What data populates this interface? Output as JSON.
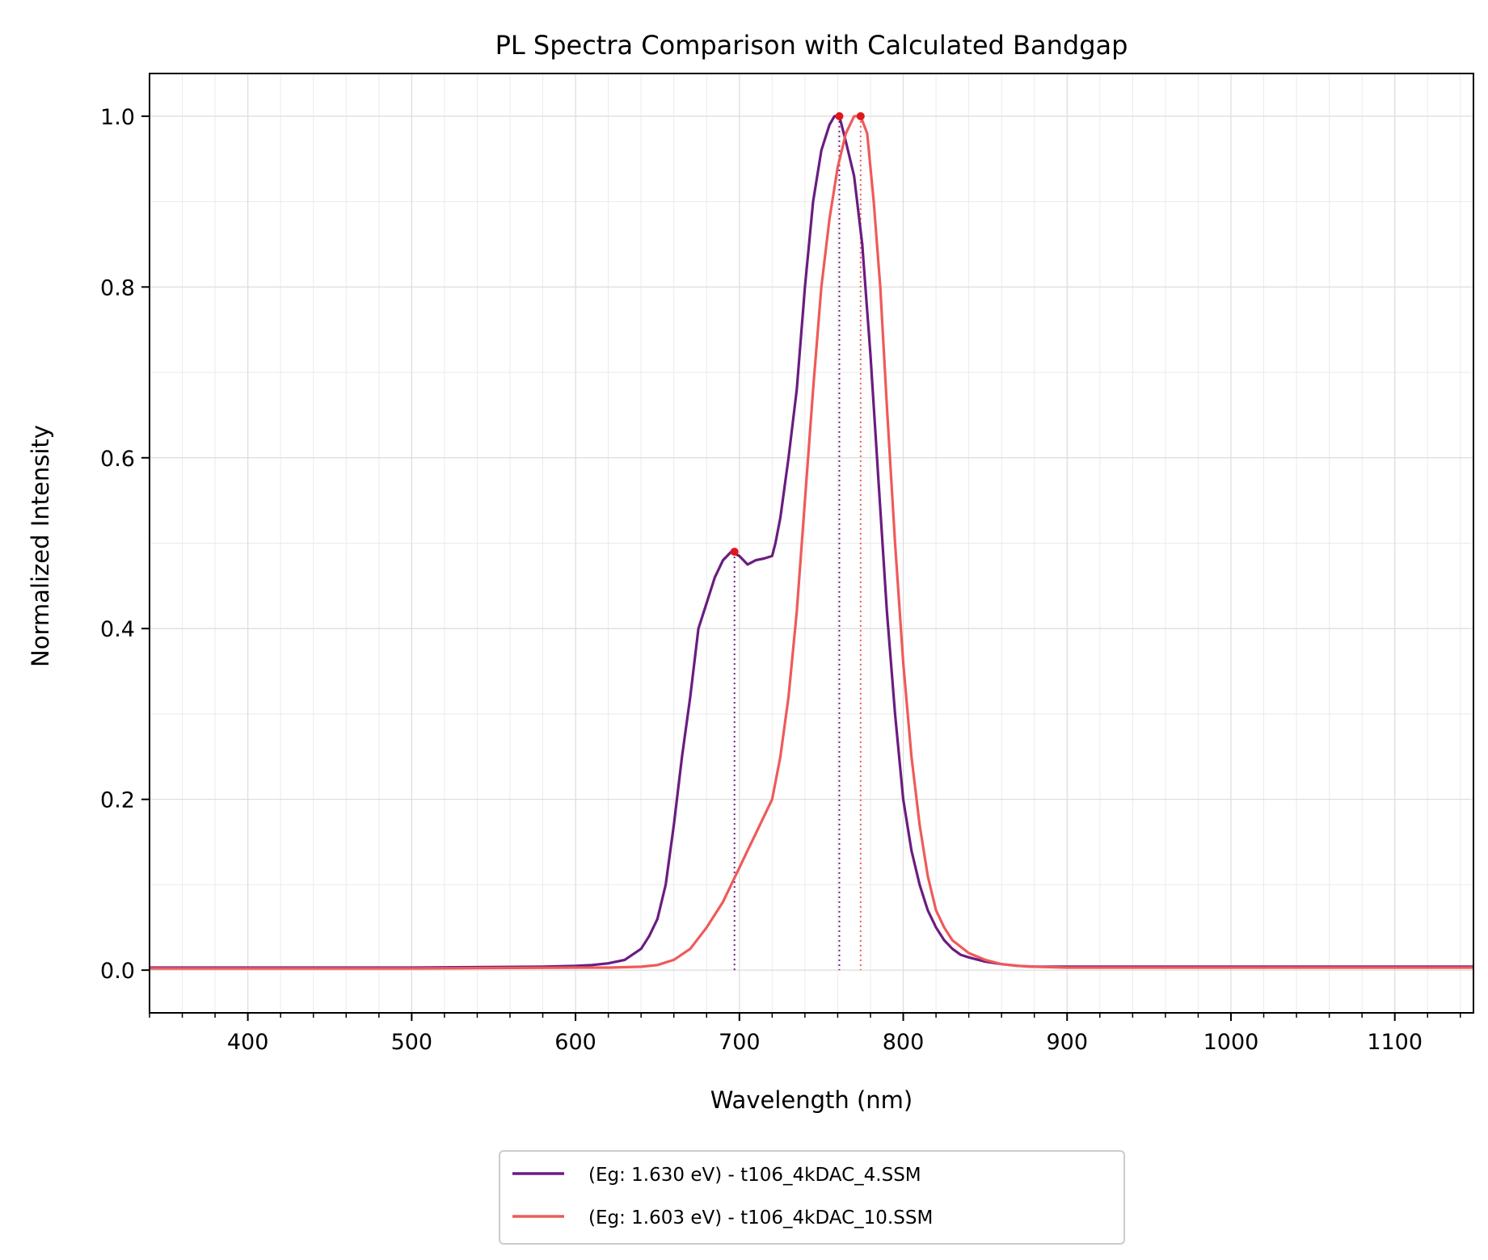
{
  "chart_data": {
    "type": "line",
    "title": "PL Spectra Comparison with Calculated Bandgap",
    "xlabel": "Wavelength (nm)",
    "ylabel": "Normalized Intensity",
    "xlim": [
      340,
      1148
    ],
    "ylim": [
      -0.05,
      1.05
    ],
    "x_ticks": [
      400,
      500,
      600,
      700,
      800,
      900,
      1000,
      1100
    ],
    "x_tick_labels": [
      "400",
      "500",
      "600",
      "700",
      "800",
      "900",
      "1000",
      "1100"
    ],
    "x_minor_step": 20,
    "y_ticks": [
      0.0,
      0.2,
      0.4,
      0.6,
      0.8,
      1.0
    ],
    "y_tick_labels": [
      "0.0",
      "0.2",
      "0.4",
      "0.6",
      "0.8",
      "1.0"
    ],
    "y_minor_step": 0.1,
    "grid": true,
    "legend_position": "bottom-center below plot",
    "series": [
      {
        "name": "(Eg: 1.630 eV) - t106_4kDAC_4.SSM",
        "color": "#6a1c81",
        "x": [
          340,
          400,
          500,
          580,
          600,
          610,
          620,
          630,
          640,
          645,
          650,
          655,
          660,
          665,
          670,
          675,
          680,
          685,
          690,
          695,
          700,
          705,
          710,
          715,
          720,
          722,
          725,
          730,
          735,
          740,
          745,
          750,
          755,
          758,
          761,
          765,
          770,
          775,
          780,
          785,
          790,
          795,
          800,
          805,
          810,
          815,
          820,
          825,
          830,
          835,
          840,
          850,
          860,
          870,
          880,
          900,
          1000,
          1148
        ],
        "y": [
          0.003,
          0.003,
          0.003,
          0.004,
          0.005,
          0.006,
          0.008,
          0.012,
          0.025,
          0.04,
          0.06,
          0.1,
          0.17,
          0.25,
          0.32,
          0.4,
          0.43,
          0.46,
          0.48,
          0.49,
          0.485,
          0.475,
          0.48,
          0.482,
          0.485,
          0.5,
          0.53,
          0.6,
          0.68,
          0.8,
          0.9,
          0.96,
          0.99,
          1.0,
          1.0,
          0.97,
          0.93,
          0.85,
          0.72,
          0.57,
          0.42,
          0.3,
          0.2,
          0.14,
          0.1,
          0.07,
          0.05,
          0.035,
          0.025,
          0.018,
          0.015,
          0.01,
          0.007,
          0.005,
          0.004,
          0.004,
          0.004,
          0.004
        ]
      },
      {
        "name": "(Eg: 1.603 eV) - t106_4kDAC_10.SSM",
        "color": "#ef5a5a",
        "x": [
          340,
          400,
          500,
          600,
          620,
          640,
          650,
          660,
          670,
          680,
          690,
          700,
          705,
          710,
          715,
          720,
          725,
          730,
          735,
          740,
          745,
          750,
          755,
          760,
          765,
          770,
          774,
          778,
          782,
          786,
          790,
          795,
          800,
          805,
          810,
          815,
          820,
          825,
          830,
          840,
          850,
          860,
          870,
          880,
          900,
          1000,
          1148
        ],
        "y": [
          0.002,
          0.002,
          0.002,
          0.003,
          0.003,
          0.004,
          0.006,
          0.012,
          0.025,
          0.05,
          0.08,
          0.12,
          0.14,
          0.16,
          0.18,
          0.2,
          0.25,
          0.32,
          0.42,
          0.55,
          0.68,
          0.8,
          0.88,
          0.94,
          0.98,
          1.0,
          1.0,
          0.98,
          0.9,
          0.8,
          0.66,
          0.5,
          0.36,
          0.25,
          0.17,
          0.11,
          0.07,
          0.05,
          0.035,
          0.02,
          0.012,
          0.007,
          0.005,
          0.004,
          0.003,
          0.003,
          0.003
        ]
      }
    ],
    "markers": [
      {
        "series": 0,
        "x": 697,
        "y": 0.49
      },
      {
        "series": 0,
        "x": 761,
        "y": 1.0
      },
      {
        "series": 1,
        "x": 774,
        "y": 1.0
      }
    ],
    "vlines": [
      {
        "series": 0,
        "x": 697,
        "y_top": 0.49
      },
      {
        "series": 0,
        "x": 761,
        "y_top": 1.0
      },
      {
        "series": 1,
        "x": 774,
        "y_top": 1.0
      }
    ]
  }
}
